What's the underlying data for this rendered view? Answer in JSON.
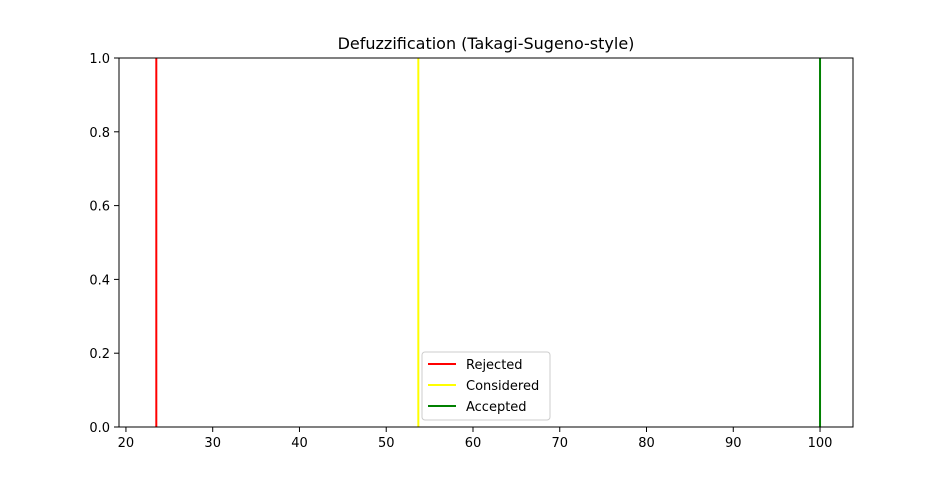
{
  "chart_data": {
    "type": "line",
    "title": "Defuzzification (Takagi-Sugeno-style)",
    "xlabel": "",
    "ylabel": "",
    "xlim": [
      19.2,
      103.8
    ],
    "ylim": [
      0,
      1
    ],
    "x_ticks": [
      20,
      30,
      40,
      50,
      60,
      70,
      80,
      90,
      100
    ],
    "y_ticks": [
      0.0,
      0.2,
      0.4,
      0.6,
      0.8,
      1.0
    ],
    "x_tick_labels": [
      "20",
      "30",
      "40",
      "50",
      "60",
      "70",
      "80",
      "90",
      "100"
    ],
    "y_tick_labels": [
      "0.0",
      "0.2",
      "0.4",
      "0.6",
      "0.8",
      "1.0"
    ],
    "grid": false,
    "legend_position": "lower-center",
    "series": [
      {
        "name": "Rejected",
        "x": 23.5,
        "y": [
          0,
          1
        ],
        "color": "#ff0000"
      },
      {
        "name": "Considered",
        "x": 53.7,
        "y": [
          0,
          1
        ],
        "color": "#ffff00"
      },
      {
        "name": "Accepted",
        "x": 100,
        "y": [
          0,
          1
        ],
        "color": "#008000"
      }
    ]
  }
}
